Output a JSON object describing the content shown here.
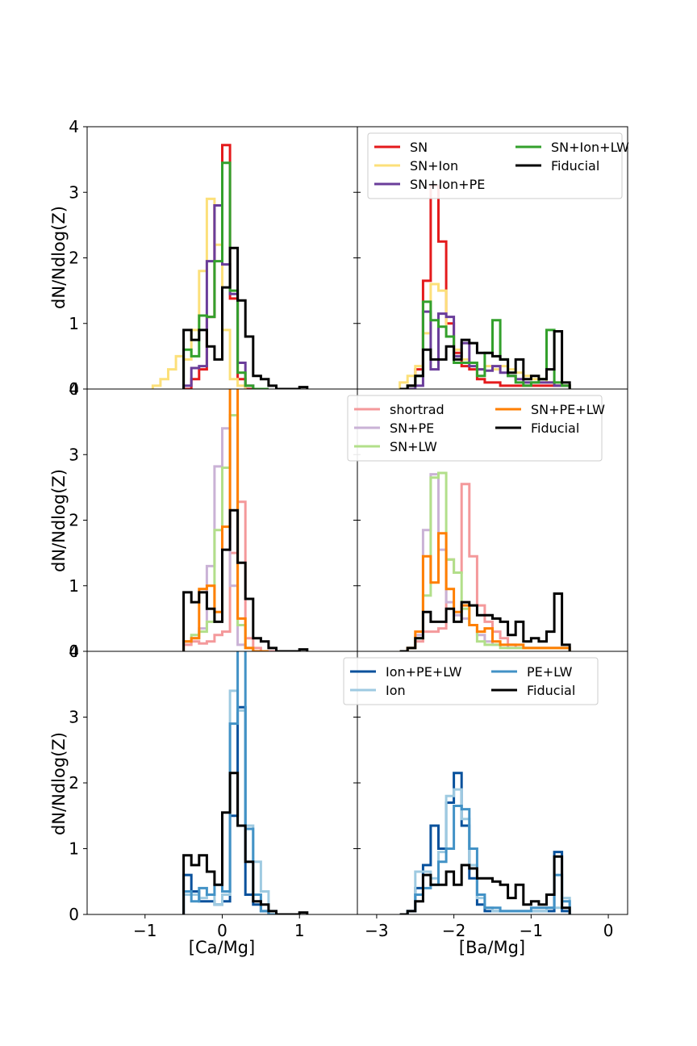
{
  "figure": {
    "ylabel": "dN/Ndlog(Z)",
    "xlabel_left": "[Ca/Mg]",
    "xlabel_right": "[Ba/Mg]"
  },
  "colors": {
    "SN": "#e41a1c",
    "SN+Ion": "#fce07a",
    "SN+Ion+PE": "#6a3d9a",
    "SN+Ion+LW": "#33a02c",
    "Fiducial": "#000000",
    "shortrad": "#f4999b",
    "SN+PE": "#cab2d6",
    "SN+LW": "#b2df8a",
    "SN+PE+LW": "#ff7f00",
    "Ion+PE+LW": "#08519c",
    "Ion": "#9ecae1",
    "PE+LW": "#4292c6"
  },
  "chart_data": [
    {
      "type": "histogram-step",
      "panel": "row1-left",
      "xlim": [
        -1.75,
        1.75
      ],
      "ylim": [
        0,
        4
      ],
      "xticks": [
        "-1",
        "0",
        "1"
      ],
      "yticks": [
        "0",
        "1",
        "2",
        "3",
        "4"
      ],
      "bin_start": -0.5,
      "bin_width": 0.1,
      "series": [
        {
          "name": "SN",
          "values": [
            0,
            0.15,
            0.3,
            1.1,
            2.8,
            3.72,
            1.38,
            0.15,
            0,
            0,
            0
          ]
        },
        {
          "name": "SN+Ion",
          "start": -0.9,
          "values": [
            0.05,
            0.15,
            0.3,
            0.5,
            0.45,
            0.9,
            1.8,
            2.9,
            2.2,
            0.9,
            0.15,
            0.05
          ]
        },
        {
          "name": "SN+Ion+PE",
          "values": [
            0.05,
            0.32,
            0.35,
            1.95,
            2.8,
            1.9,
            1.45,
            0.4,
            0.05,
            0,
            0
          ]
        },
        {
          "name": "SN+Ion+LW",
          "values": [
            0.6,
            0.5,
            1.12,
            1.1,
            1.95,
            3.45,
            1.5,
            0.25,
            0.05,
            0,
            0
          ]
        },
        {
          "name": "Fiducial",
          "values": [
            0.9,
            0.75,
            0.9,
            0.65,
            0.45,
            1.55,
            2.15,
            1.35,
            0.8,
            0.2,
            0.15,
            0.05,
            0,
            0,
            0,
            0.03
          ]
        }
      ]
    },
    {
      "type": "histogram-step",
      "panel": "row1-right",
      "xlim": [
        -3.25,
        0.25
      ],
      "ylim": [
        0,
        4
      ],
      "xticks": [
        "-3",
        "-2",
        "-1",
        "0"
      ],
      "yticks": [],
      "bin_start": -2.7,
      "bin_width": 0.1,
      "legend": {
        "placement": "top-right",
        "columns": [
          [
            "SN",
            "SN+Ion",
            "SN+Ion+PE"
          ],
          [
            "SN+Ion+LW",
            "Fiducial"
          ]
        ]
      },
      "series": [
        {
          "name": "SN",
          "values": [
            0,
            0.05,
            0.3,
            1.65,
            3.1,
            2.25,
            1.0,
            0.55,
            0.35,
            0.3,
            0.15,
            0.1,
            0.1,
            0.05,
            0.05,
            0.05,
            0.05,
            0.05,
            0.05,
            0.05,
            0.05,
            0.05
          ]
        },
        {
          "name": "SN+Ion",
          "values": [
            0.1,
            0.2,
            0.35,
            0.85,
            1.6,
            1.5,
            0.8,
            0.6,
            0.45,
            0.4,
            0.3,
            0.35,
            0.3,
            0.35,
            0.3,
            0.25,
            0.2,
            0.15,
            0.15,
            0.1,
            0.1,
            0.05
          ]
        },
        {
          "name": "SN+Ion+PE",
          "values": [
            0,
            0,
            0.05,
            1.18,
            0.3,
            1.15,
            1.1,
            0.5,
            0.7,
            0.35,
            0.3,
            0.28,
            0.35,
            0.25,
            0.2,
            0.15,
            0.1,
            0.1,
            0.1,
            0.1,
            0.05,
            0.05
          ]
        },
        {
          "name": "SN+Ion+LW",
          "values": [
            0,
            0.05,
            0.2,
            1.33,
            1.05,
            0.95,
            0.8,
            0.4,
            0.4,
            0.4,
            0.2,
            0.55,
            1.05,
            0.45,
            0.2,
            0.1,
            0.05,
            0.1,
            0.15,
            0.9,
            0.1,
            0.05
          ]
        },
        {
          "name": "Fiducial",
          "values": [
            0,
            0.05,
            0.2,
            0.6,
            0.45,
            0.45,
            0.65,
            0.45,
            0.75,
            0.7,
            0.55,
            0.55,
            0.5,
            0.45,
            0.25,
            0.45,
            0.15,
            0.2,
            0.15,
            0.3,
            0.88,
            0.1
          ]
        }
      ]
    },
    {
      "type": "histogram-step",
      "panel": "row2-left",
      "xlim": [
        -1.75,
        1.75
      ],
      "ylim": [
        0,
        4
      ],
      "xticks": [
        "-1",
        "0",
        "1"
      ],
      "yticks": [
        "0",
        "1",
        "2",
        "3",
        "4"
      ],
      "bin_start": -0.5,
      "bin_width": 0.1,
      "series": [
        {
          "name": "shortrad",
          "values": [
            0.1,
            0.15,
            0.12,
            0.15,
            0.25,
            0.3,
            1.5,
            2.28,
            0.2,
            0.05,
            0,
            0
          ]
        },
        {
          "name": "SN+PE",
          "values": [
            0.15,
            0.2,
            0.35,
            1.3,
            2.82,
            3.4,
            1.0,
            0.1,
            0.05,
            0,
            0
          ]
        },
        {
          "name": "SN+LW",
          "values": [
            0.15,
            0.25,
            0.3,
            0.45,
            1.85,
            2.8,
            3.6,
            0.4,
            0.05,
            0,
            0
          ]
        },
        {
          "name": "SN+PE+LW",
          "values": [
            0.15,
            0.2,
            0.95,
            1.0,
            0.6,
            1.9,
            4.2,
            0.5,
            0.05,
            0,
            0
          ]
        },
        {
          "name": "Fiducial",
          "values": [
            0.9,
            0.75,
            0.9,
            0.65,
            0.45,
            1.55,
            2.15,
            1.35,
            0.8,
            0.2,
            0.15,
            0.05,
            0,
            0,
            0,
            0.03
          ]
        }
      ]
    },
    {
      "type": "histogram-step",
      "panel": "row2-right",
      "xlim": [
        -3.25,
        0.25
      ],
      "ylim": [
        0,
        4
      ],
      "xticks": [
        "-3",
        "-2",
        "-1",
        "0"
      ],
      "yticks": [],
      "bin_start": -2.7,
      "bin_width": 0.1,
      "legend": {
        "placement": "top-right",
        "columns": [
          [
            "shortrad",
            "SN+PE",
            "SN+LW"
          ],
          [
            "SN+PE+LW",
            "Fiducial"
          ]
        ]
      },
      "series": [
        {
          "name": "shortrad",
          "values": [
            0,
            0.05,
            0.15,
            0.3,
            0.3,
            0.35,
            1.4,
            1.2,
            2.55,
            1.45,
            0.7,
            0.45,
            0.3,
            0.2,
            0.1,
            0.05,
            0.05,
            0.05,
            0.05,
            0.05,
            0.05,
            0.05
          ]
        },
        {
          "name": "SN+PE",
          "values": [
            0,
            0.05,
            0.25,
            1.85,
            2.7,
            1.55,
            0.75,
            0.55,
            0.5,
            0.4,
            0.25,
            0.15,
            0.1,
            0.1,
            0.05,
            0.05,
            0.05,
            0.05,
            0.05,
            0.05,
            0.05,
            0.05
          ]
        },
        {
          "name": "SN+LW",
          "values": [
            0,
            0.05,
            0.2,
            0.85,
            2.65,
            2.72,
            1.4,
            1.2,
            0.65,
            0.4,
            0.15,
            0.1,
            0.1,
            0.05,
            0.05,
            0.05,
            0.05,
            0.05,
            0.05,
            0.05,
            0.05,
            0.05
          ]
        },
        {
          "name": "SN+PE+LW",
          "values": [
            0,
            0.05,
            0.3,
            1.45,
            1.05,
            1.8,
            0.95,
            0.6,
            0.7,
            0.4,
            0.3,
            0.35,
            0.15,
            0.1,
            0.1,
            0.1,
            0.05,
            0.05,
            0.05,
            0.05,
            0.05,
            0.05
          ]
        },
        {
          "name": "Fiducial",
          "values": [
            0,
            0.05,
            0.2,
            0.6,
            0.45,
            0.45,
            0.65,
            0.45,
            0.75,
            0.7,
            0.55,
            0.55,
            0.5,
            0.45,
            0.25,
            0.45,
            0.15,
            0.2,
            0.15,
            0.3,
            0.88,
            0.1
          ]
        }
      ]
    },
    {
      "type": "histogram-step",
      "panel": "row3-left",
      "xlim": [
        -1.75,
        1.75
      ],
      "ylim": [
        0,
        4
      ],
      "xticks": [
        "-1",
        "0",
        "1"
      ],
      "yticks": [
        "0",
        "1",
        "2",
        "3",
        "4"
      ],
      "bin_start": -0.5,
      "bin_width": 0.1,
      "series": [
        {
          "name": "Ion+PE+LW",
          "values": [
            0.6,
            0.35,
            0.2,
            0.2,
            0.15,
            0.2,
            1.5,
            3.15,
            0.3,
            0.15,
            0.05,
            0
          ]
        },
        {
          "name": "Ion",
          "values": [
            0.3,
            0.3,
            0.25,
            0.3,
            0.15,
            0.3,
            3.4,
            3.1,
            1.35,
            0.8,
            0.35,
            0.05
          ]
        },
        {
          "name": "PE+LW",
          "values": [
            0.35,
            0.2,
            0.4,
            0.3,
            0.45,
            0.35,
            2.9,
            4.1,
            1.3,
            0.3,
            0.05,
            0
          ]
        },
        {
          "name": "Fiducial",
          "values": [
            0.9,
            0.75,
            0.9,
            0.65,
            0.45,
            1.55,
            2.15,
            1.35,
            0.8,
            0.2,
            0.15,
            0.05,
            0,
            0,
            0,
            0.03
          ]
        }
      ]
    },
    {
      "type": "histogram-step",
      "panel": "row3-right",
      "xlim": [
        -3.25,
        0.25
      ],
      "ylim": [
        0,
        4
      ],
      "xticks": [
        "-3",
        "-2",
        "-1",
        "0"
      ],
      "yticks": [],
      "bin_start": -2.7,
      "bin_width": 0.1,
      "legend": {
        "placement": "top-right",
        "columns": [
          [
            "Ion+PE+LW",
            "Ion"
          ],
          [
            "PE+LW",
            "Fiducial"
          ]
        ]
      },
      "series": [
        {
          "name": "Ion+PE+LW",
          "values": [
            0,
            0.05,
            0.4,
            0.75,
            1.35,
            1.0,
            1.7,
            2.15,
            1.35,
            0.55,
            0.15,
            0.05,
            0.05,
            0.05,
            0.05,
            0.05,
            0.05,
            0.05,
            0.05,
            0.05,
            0.95,
            0.05
          ]
        },
        {
          "name": "Ion",
          "values": [
            0,
            0.05,
            0.65,
            0.65,
            0.55,
            0.95,
            1.8,
            1.9,
            1.45,
            0.75,
            0.25,
            0.1,
            0.05,
            0.05,
            0.05,
            0.05,
            0.05,
            0.05,
            0.05,
            0.1,
            0.1,
            0.25
          ]
        },
        {
          "name": "PE+LW",
          "values": [
            0,
            0.05,
            0.3,
            0.4,
            0.45,
            0.8,
            1.0,
            1.65,
            1.6,
            1.0,
            0.3,
            0.1,
            0.1,
            0.05,
            0.05,
            0.05,
            0.05,
            0.1,
            0.1,
            0.1,
            0.6,
            0.2
          ]
        },
        {
          "name": "Fiducial",
          "values": [
            0,
            0.05,
            0.2,
            0.6,
            0.45,
            0.45,
            0.65,
            0.45,
            0.75,
            0.7,
            0.55,
            0.55,
            0.5,
            0.45,
            0.25,
            0.45,
            0.15,
            0.2,
            0.15,
            0.3,
            0.88,
            0.1
          ]
        }
      ]
    }
  ]
}
